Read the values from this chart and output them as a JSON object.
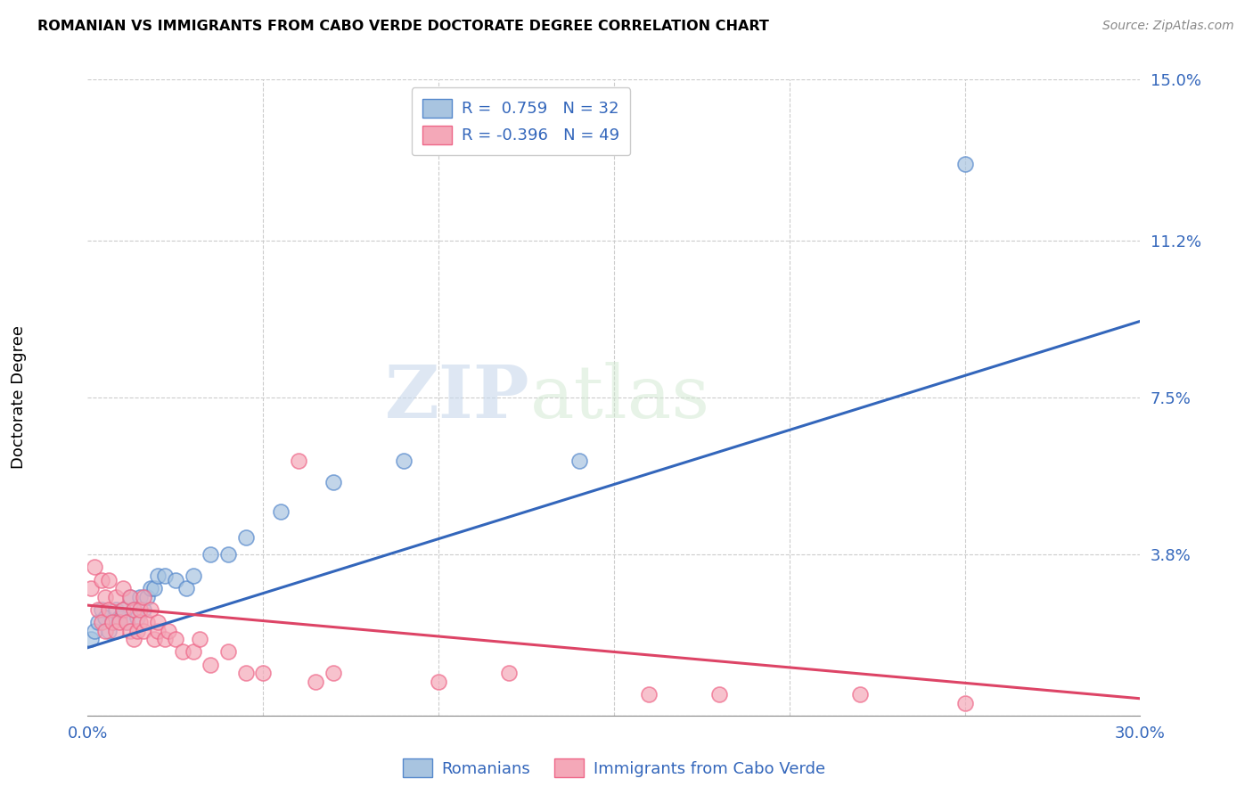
{
  "title": "ROMANIAN VS IMMIGRANTS FROM CABO VERDE DOCTORATE DEGREE CORRELATION CHART",
  "source": "Source: ZipAtlas.com",
  "ylabel": "Doctorate Degree",
  "xlim": [
    0.0,
    0.3
  ],
  "ylim": [
    0.0,
    0.15
  ],
  "xticks": [
    0.0,
    0.05,
    0.1,
    0.15,
    0.2,
    0.25,
    0.3
  ],
  "ytick_positions": [
    0.0,
    0.038,
    0.075,
    0.112,
    0.15
  ],
  "ytick_labels": [
    "",
    "3.8%",
    "7.5%",
    "11.2%",
    "15.0%"
  ],
  "xtick_labels": [
    "0.0%",
    "",
    "",
    "",
    "",
    "",
    "30.0%"
  ],
  "blue_R": 0.759,
  "blue_N": 32,
  "pink_R": -0.396,
  "pink_N": 49,
  "blue_color": "#A8C4E0",
  "pink_color": "#F4A8B8",
  "blue_line_color": "#3366BB",
  "pink_line_color": "#DD4466",
  "blue_edge_color": "#5588CC",
  "pink_edge_color": "#EE6688",
  "background_color": "#FFFFFF",
  "grid_color": "#CCCCCC",
  "watermark_zip": "ZIP",
  "watermark_atlas": "atlas",
  "blue_scatter_x": [
    0.001,
    0.002,
    0.003,
    0.004,
    0.005,
    0.006,
    0.007,
    0.008,
    0.009,
    0.01,
    0.011,
    0.012,
    0.013,
    0.014,
    0.015,
    0.016,
    0.017,
    0.018,
    0.019,
    0.02,
    0.022,
    0.025,
    0.028,
    0.03,
    0.035,
    0.04,
    0.045,
    0.055,
    0.07,
    0.09,
    0.14,
    0.25
  ],
  "blue_scatter_y": [
    0.018,
    0.02,
    0.022,
    0.025,
    0.023,
    0.02,
    0.022,
    0.025,
    0.023,
    0.025,
    0.022,
    0.028,
    0.025,
    0.023,
    0.028,
    0.025,
    0.028,
    0.03,
    0.03,
    0.033,
    0.033,
    0.032,
    0.03,
    0.033,
    0.038,
    0.038,
    0.042,
    0.048,
    0.055,
    0.06,
    0.06,
    0.13
  ],
  "pink_scatter_x": [
    0.001,
    0.002,
    0.003,
    0.004,
    0.004,
    0.005,
    0.005,
    0.006,
    0.006,
    0.007,
    0.008,
    0.008,
    0.009,
    0.01,
    0.01,
    0.011,
    0.012,
    0.012,
    0.013,
    0.013,
    0.014,
    0.015,
    0.015,
    0.016,
    0.016,
    0.017,
    0.018,
    0.019,
    0.02,
    0.02,
    0.022,
    0.023,
    0.025,
    0.027,
    0.03,
    0.032,
    0.035,
    0.04,
    0.045,
    0.05,
    0.06,
    0.065,
    0.07,
    0.1,
    0.12,
    0.16,
    0.18,
    0.22,
    0.25
  ],
  "pink_scatter_y": [
    0.03,
    0.035,
    0.025,
    0.032,
    0.022,
    0.028,
    0.02,
    0.025,
    0.032,
    0.022,
    0.02,
    0.028,
    0.022,
    0.025,
    0.03,
    0.022,
    0.028,
    0.02,
    0.025,
    0.018,
    0.02,
    0.022,
    0.025,
    0.02,
    0.028,
    0.022,
    0.025,
    0.018,
    0.02,
    0.022,
    0.018,
    0.02,
    0.018,
    0.015,
    0.015,
    0.018,
    0.012,
    0.015,
    0.01,
    0.01,
    0.06,
    0.008,
    0.01,
    0.008,
    0.01,
    0.005,
    0.005,
    0.005,
    0.003
  ],
  "blue_line_x": [
    0.0,
    0.3
  ],
  "blue_line_y": [
    0.016,
    0.093
  ],
  "pink_line_x": [
    0.0,
    0.3
  ],
  "pink_line_y": [
    0.026,
    0.004
  ]
}
